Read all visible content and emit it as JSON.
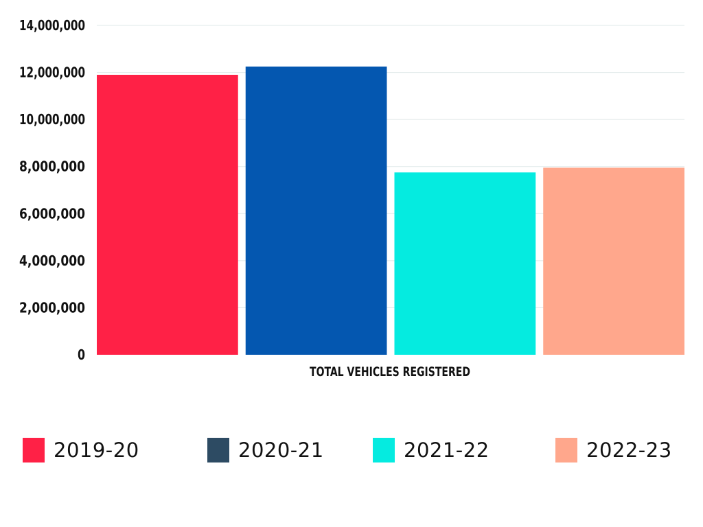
{
  "chart_data": {
    "type": "bar",
    "title": "",
    "xlabel": "TOTAL VEHICLES REGISTERED",
    "ylabel": "",
    "categories": [
      "TOTAL VEHICLES REGISTERED"
    ],
    "series": [
      {
        "name": "2019-20",
        "values": [
          11900000
        ],
        "color": "#ff2146",
        "legend_color": "#ff2146"
      },
      {
        "name": "2020-21",
        "values": [
          12250000
        ],
        "color": "#0457b0",
        "legend_color": "#2d4b63"
      },
      {
        "name": "2021-22",
        "values": [
          7750000
        ],
        "color": "#05ebe0",
        "legend_color": "#05ebe0"
      },
      {
        "name": "2022-23",
        "values": [
          7950000
        ],
        "color": "#ffa78c",
        "legend_color": "#ffa78c"
      }
    ],
    "ylim": [
      0,
      14000000
    ],
    "yticks": [
      0,
      2000000,
      4000000,
      6000000,
      8000000,
      10000000,
      12000000,
      14000000
    ],
    "ytick_labels": [
      "0",
      "2,000,000",
      "4,000,000",
      "6,000,000",
      "8,000,000",
      "10,000,000",
      "12,000,000",
      "14,000,000"
    ],
    "grid": true,
    "legend_position": "bottom"
  }
}
